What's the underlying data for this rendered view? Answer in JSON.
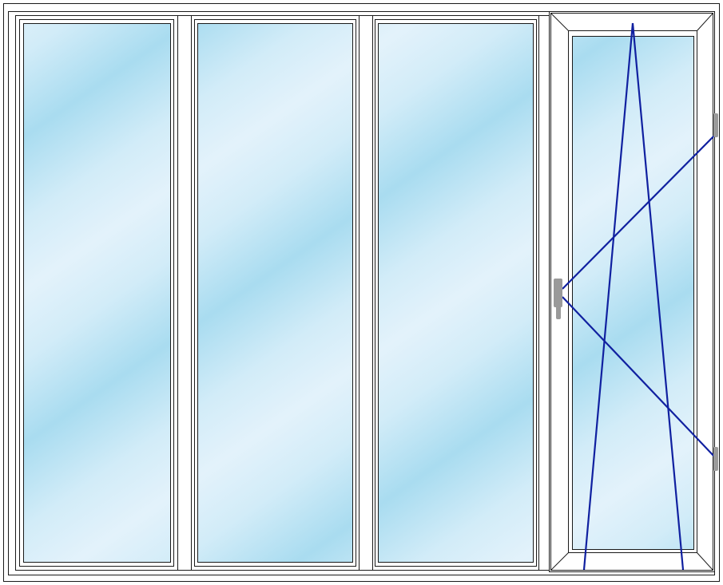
{
  "diagram": {
    "type": "window-elevation",
    "panes": [
      {
        "id": "pane-1",
        "opening": "fixed"
      },
      {
        "id": "pane-2",
        "opening": "fixed"
      },
      {
        "id": "pane-3",
        "opening": "fixed"
      },
      {
        "id": "pane-4",
        "opening": "tilt-and-turn",
        "hinge_side": "right",
        "handle_side": "left"
      }
    ],
    "colors": {
      "frame_fill": "#ffffff",
      "frame_stroke": "#1a1a1a",
      "glass_light": "#e3f2fb",
      "glass_dark": "#a9dcf0",
      "opening_lines": "#1020a0",
      "hardware": "#9a9a9a"
    }
  }
}
